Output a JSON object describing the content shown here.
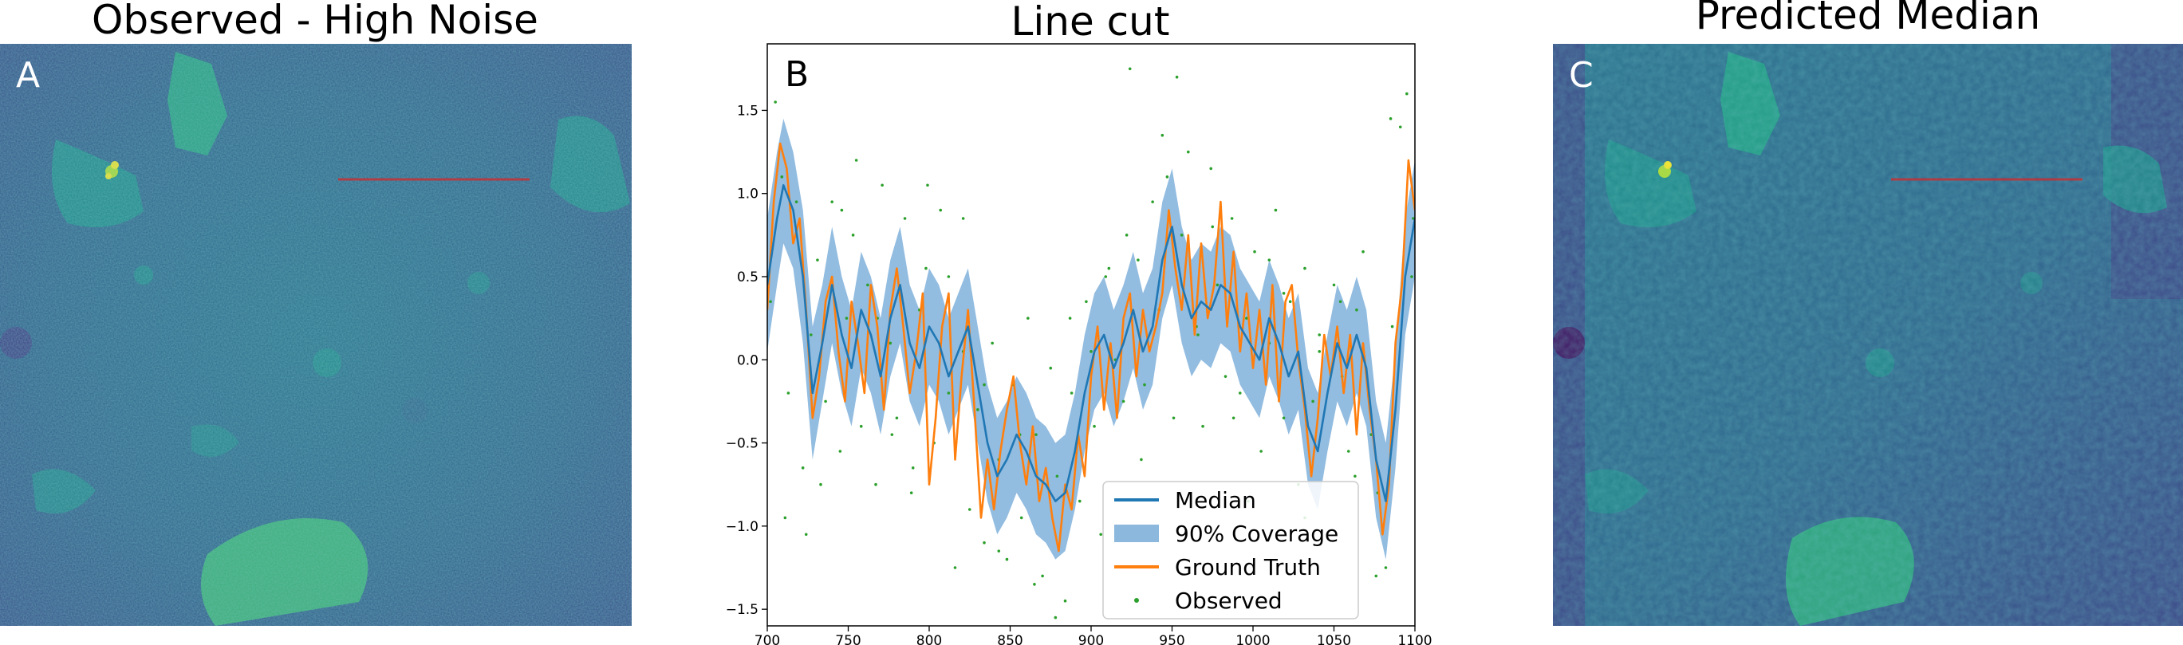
{
  "panels": {
    "a": {
      "title": "Observed - High Noise",
      "letter": "A"
    },
    "b": {
      "title": "Line cut",
      "letter": "B"
    },
    "c": {
      "title": "Predicted Median",
      "letter": "C"
    }
  },
  "colors": {
    "median": "#1f77b4",
    "coverage": "#8cb8de",
    "ground_truth": "#ff7f0e",
    "observed": "#2ca02c",
    "line_cut": "#d62728",
    "viridis_dark": "#3b528b",
    "viridis_mid": "#2c728e",
    "viridis_teal": "#21918c",
    "viridis_green": "#5ec962",
    "viridis_yellow": "#fde725"
  },
  "chart_data": {
    "type": "line",
    "title": "Line cut",
    "xlabel": "",
    "ylabel": "",
    "xlim": [
      700,
      1100
    ],
    "ylim": [
      -1.6,
      1.9
    ],
    "xticks": [
      700,
      750,
      800,
      850,
      900,
      950,
      1000,
      1050,
      1100
    ],
    "yticks": [
      -1.5,
      -1.0,
      -0.5,
      0.0,
      0.5,
      1.0,
      1.5
    ],
    "ytick_labels": [
      "−1.5",
      "−1.0",
      "−0.5",
      "0.0",
      "0.5",
      "1.0",
      "1.5"
    ],
    "legend": {
      "placement": "lower-right",
      "entries": [
        "Median",
        "90%  Coverage",
        "Ground Truth",
        "Observed"
      ]
    },
    "series": [
      {
        "name": "Median",
        "x": [
          700,
          706,
          710,
          716,
          722,
          728,
          734,
          740,
          746,
          752,
          758,
          764,
          770,
          776,
          782,
          788,
          794,
          800,
          806,
          812,
          818,
          824,
          830,
          836,
          842,
          848,
          854,
          860,
          866,
          872,
          878,
          884,
          890,
          896,
          902,
          908,
          914,
          920,
          926,
          932,
          938,
          944,
          950,
          956,
          962,
          968,
          974,
          980,
          986,
          992,
          998,
          1004,
          1010,
          1016,
          1022,
          1028,
          1034,
          1040,
          1046,
          1052,
          1058,
          1064,
          1070,
          1076,
          1082,
          1088,
          1094,
          1100
        ],
        "values": [
          0.45,
          0.85,
          1.05,
          0.9,
          0.5,
          -0.2,
          0.1,
          0.45,
          0.15,
          -0.05,
          0.3,
          0.15,
          -0.1,
          0.25,
          0.45,
          0.1,
          -0.05,
          0.2,
          0.1,
          -0.1,
          0.05,
          0.2,
          -0.15,
          -0.5,
          -0.7,
          -0.6,
          -0.45,
          -0.55,
          -0.7,
          -0.75,
          -0.85,
          -0.8,
          -0.55,
          -0.2,
          0.05,
          0.15,
          -0.05,
          0.1,
          0.3,
          0.05,
          0.2,
          0.6,
          0.8,
          0.45,
          0.25,
          0.35,
          0.3,
          0.45,
          0.4,
          0.2,
          0.1,
          0.0,
          0.25,
          0.1,
          -0.1,
          0.05,
          -0.4,
          -0.55,
          -0.2,
          0.1,
          -0.05,
          0.15,
          -0.05,
          -0.6,
          -0.85,
          -0.3,
          0.5,
          0.85
        ]
      },
      {
        "name": "90%  Coverage",
        "x": [
          700,
          706,
          710,
          716,
          722,
          728,
          734,
          740,
          746,
          752,
          758,
          764,
          770,
          776,
          782,
          788,
          794,
          800,
          806,
          812,
          818,
          824,
          830,
          836,
          842,
          848,
          854,
          860,
          866,
          872,
          878,
          884,
          890,
          896,
          902,
          908,
          914,
          920,
          926,
          932,
          938,
          944,
          950,
          956,
          962,
          968,
          974,
          980,
          986,
          992,
          998,
          1004,
          1010,
          1016,
          1022,
          1028,
          1034,
          1040,
          1046,
          1052,
          1058,
          1064,
          1070,
          1076,
          1082,
          1088,
          1094,
          1100
        ],
        "lower": [
          0.05,
          0.45,
          0.7,
          0.55,
          0.1,
          -0.6,
          -0.25,
          0.1,
          -0.2,
          -0.4,
          -0.05,
          -0.2,
          -0.45,
          -0.1,
          0.1,
          -0.25,
          -0.4,
          -0.15,
          -0.25,
          -0.45,
          -0.3,
          -0.15,
          -0.5,
          -0.85,
          -1.05,
          -0.95,
          -0.8,
          -0.9,
          -1.05,
          -1.1,
          -1.2,
          -1.15,
          -0.9,
          -0.55,
          -0.3,
          -0.2,
          -0.4,
          -0.25,
          -0.05,
          -0.3,
          -0.15,
          0.25,
          0.45,
          0.1,
          -0.1,
          0.0,
          -0.05,
          0.1,
          0.05,
          -0.15,
          -0.25,
          -0.35,
          -0.1,
          -0.25,
          -0.45,
          -0.3,
          -0.75,
          -0.9,
          -0.55,
          -0.25,
          -0.4,
          -0.2,
          -0.4,
          -0.95,
          -1.2,
          -0.65,
          0.15,
          0.5
        ],
        "upper": [
          0.85,
          1.25,
          1.45,
          1.25,
          0.9,
          0.2,
          0.45,
          0.8,
          0.5,
          0.3,
          0.65,
          0.5,
          0.25,
          0.6,
          0.8,
          0.45,
          0.3,
          0.55,
          0.45,
          0.25,
          0.4,
          0.55,
          0.2,
          -0.15,
          -0.35,
          -0.25,
          -0.1,
          -0.2,
          -0.35,
          -0.4,
          -0.5,
          -0.45,
          -0.2,
          0.15,
          0.4,
          0.5,
          0.3,
          0.45,
          0.65,
          0.4,
          0.55,
          0.95,
          1.15,
          0.8,
          0.6,
          0.7,
          0.65,
          0.8,
          0.75,
          0.55,
          0.45,
          0.35,
          0.6,
          0.45,
          0.25,
          0.4,
          -0.05,
          -0.2,
          0.15,
          0.45,
          0.3,
          0.5,
          0.3,
          -0.25,
          -0.5,
          0.05,
          0.85,
          1.2
        ]
      },
      {
        "name": "Ground Truth",
        "x": [
          700,
          704,
          708,
          712,
          716,
          720,
          724,
          728,
          732,
          736,
          740,
          744,
          748,
          752,
          756,
          760,
          764,
          768,
          772,
          776,
          780,
          784,
          788,
          792,
          796,
          800,
          804,
          808,
          812,
          816,
          820,
          824,
          828,
          832,
          836,
          840,
          844,
          848,
          852,
          856,
          860,
          864,
          868,
          872,
          876,
          880,
          884,
          888,
          892,
          896,
          900,
          904,
          908,
          912,
          916,
          920,
          924,
          928,
          932,
          936,
          940,
          944,
          948,
          952,
          956,
          960,
          964,
          968,
          972,
          976,
          980,
          984,
          988,
          992,
          996,
          1000,
          1004,
          1008,
          1012,
          1016,
          1020,
          1024,
          1028,
          1032,
          1036,
          1040,
          1044,
          1048,
          1052,
          1056,
          1060,
          1064,
          1068,
          1072,
          1076,
          1080,
          1084,
          1088,
          1092,
          1096,
          1100
        ],
        "values": [
          0.3,
          0.95,
          1.3,
          1.15,
          0.7,
          0.85,
          0.3,
          -0.35,
          -0.1,
          0.35,
          0.5,
          0.05,
          -0.25,
          0.35,
          0.1,
          -0.2,
          0.45,
          0.2,
          -0.3,
          0.3,
          0.55,
          0.2,
          -0.2,
          0.05,
          0.4,
          -0.75,
          -0.35,
          0.2,
          0.4,
          -0.6,
          -0.1,
          0.3,
          -0.3,
          -0.95,
          -0.6,
          -0.9,
          -0.55,
          -0.3,
          -0.1,
          -0.5,
          -0.75,
          -0.4,
          -0.85,
          -0.65,
          -0.95,
          -1.15,
          -0.75,
          -0.9,
          -0.45,
          -0.7,
          -0.1,
          0.2,
          -0.3,
          0.1,
          -0.35,
          0.25,
          0.4,
          -0.1,
          0.3,
          0.05,
          0.2,
          0.4,
          0.9,
          0.55,
          0.3,
          0.75,
          0.15,
          0.7,
          0.25,
          0.45,
          0.95,
          0.2,
          0.65,
          0.05,
          0.4,
          -0.05,
          0.3,
          -0.15,
          0.45,
          -0.25,
          0.35,
          0.45,
          0.0,
          -0.3,
          -0.7,
          -0.35,
          0.15,
          -0.1,
          0.2,
          -0.2,
          0.15,
          -0.45,
          0.1,
          -0.3,
          -0.6,
          -1.05,
          -0.75,
          0.1,
          0.45,
          1.2,
          0.9
        ]
      },
      {
        "name": "Observed",
        "x": [
          702,
          705,
          709,
          713,
          718,
          722,
          727,
          731,
          736,
          740,
          745,
          749,
          753,
          758,
          762,
          767,
          771,
          776,
          780,
          785,
          789,
          794,
          798,
          803,
          807,
          812,
          816,
          821,
          825,
          830,
          834,
          839,
          843,
          848,
          852,
          857,
          861,
          866,
          870,
          875,
          879,
          884,
          888,
          893,
          897,
          902,
          906,
          911,
          915,
          920,
          924,
          929,
          933,
          938,
          942,
          947,
          951,
          956,
          960,
          965,
          969,
          974,
          978,
          983,
          987,
          992,
          996,
          1001,
          1005,
          1010,
          1014,
          1019,
          1023,
          1028,
          1032,
          1037,
          1041,
          1046,
          1050,
          1055,
          1059,
          1064,
          1068,
          1073,
          1077,
          1082,
          1086,
          1091,
          1095,
          1099,
          711,
          733,
          755,
          777,
          799,
          821,
          843,
          865,
          887,
          909,
          931,
          953,
          975,
          997,
          1019,
          1041,
          1063,
          1085,
          724,
          746,
          768,
          790,
          812,
          834,
          856,
          878,
          900,
          922,
          944,
          966,
          988,
          1010,
          1032,
          1054,
          1076,
          1098
        ],
        "values": [
          0.35,
          1.55,
          1.1,
          -0.2,
          0.95,
          -0.65,
          0.15,
          0.6,
          -0.25,
          0.95,
          -0.55,
          0.25,
          0.75,
          -0.4,
          0.45,
          -0.75,
          1.05,
          0.1,
          -0.35,
          0.85,
          -0.8,
          0.3,
          0.55,
          -0.5,
          0.9,
          -0.2,
          -1.25,
          0.05,
          -0.9,
          -0.3,
          -1.1,
          0.1,
          -0.6,
          -1.2,
          -0.15,
          -0.95,
          0.25,
          -0.45,
          -1.3,
          -0.05,
          -0.7,
          -1.45,
          -0.2,
          -0.85,
          0.35,
          -0.4,
          -1.05,
          0.55,
          0.0,
          -0.25,
          1.75,
          0.6,
          -0.15,
          0.95,
          0.3,
          1.1,
          -0.35,
          0.75,
          1.25,
          0.2,
          -0.4,
          1.15,
          0.45,
          -0.1,
          0.85,
          -0.2,
          0.25,
          0.65,
          -0.55,
          0.1,
          0.9,
          -0.35,
          0.35,
          -0.75,
          0.55,
          -0.25,
          0.15,
          -1.05,
          0.45,
          -0.1,
          -0.55,
          0.3,
          0.65,
          -0.45,
          -0.8,
          -1.25,
          0.2,
          1.4,
          1.6,
          0.85,
          -0.95,
          -0.75,
          1.2,
          -0.45,
          1.05,
          0.85,
          -1.15,
          -1.35,
          0.25,
          0.5,
          -0.6,
          1.7,
          0.8,
          -0.85,
          0.4,
          0.05,
          -0.7,
          1.45,
          -1.05,
          0.9,
          0.25,
          -0.65,
          0.5,
          -0.15,
          -0.45,
          -1.55,
          0.05,
          0.75,
          1.35,
          0.15,
          -0.35,
          0.6,
          -0.95,
          0.35,
          -1.3,
          0.5
        ]
      }
    ]
  }
}
